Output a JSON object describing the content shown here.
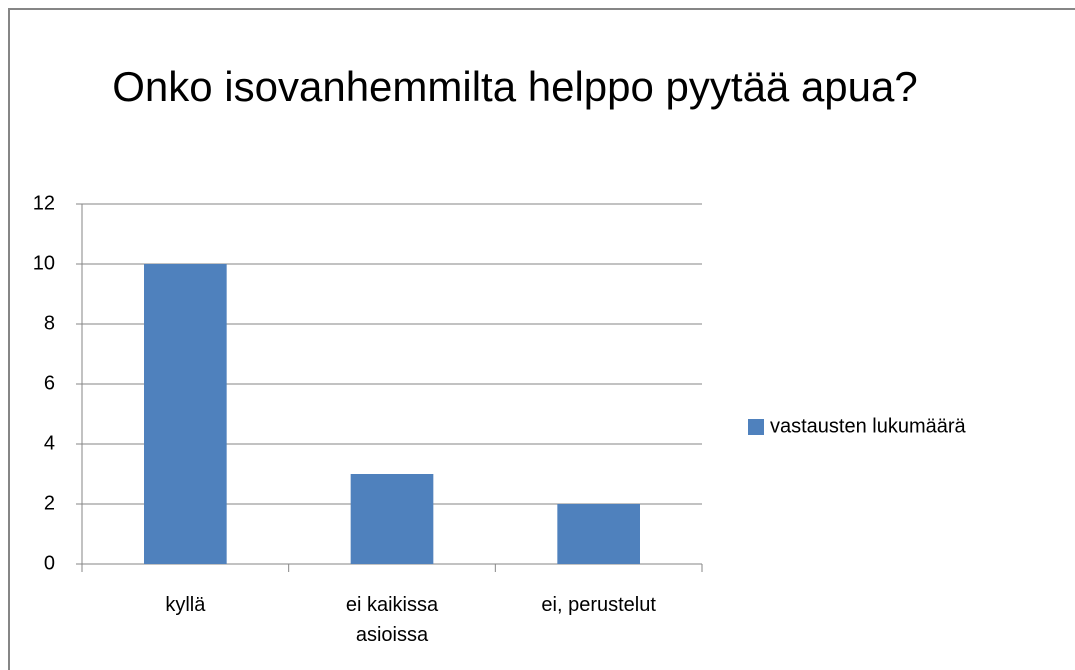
{
  "chart_data": {
    "type": "bar",
    "title": "Onko isovanhemmilta helppo pyytää apua?",
    "categories": [
      "kyllä",
      "ei kaikissa asioissa",
      "ei, perustelut"
    ],
    "series": [
      {
        "name": "vastausten lukumäärä",
        "color": "#4f81bd",
        "values": [
          10,
          3,
          2
        ]
      }
    ],
    "ylim": [
      0,
      12
    ],
    "yticks": [
      0,
      2,
      4,
      6,
      8,
      10,
      12
    ],
    "grid": true,
    "legend": "right"
  }
}
